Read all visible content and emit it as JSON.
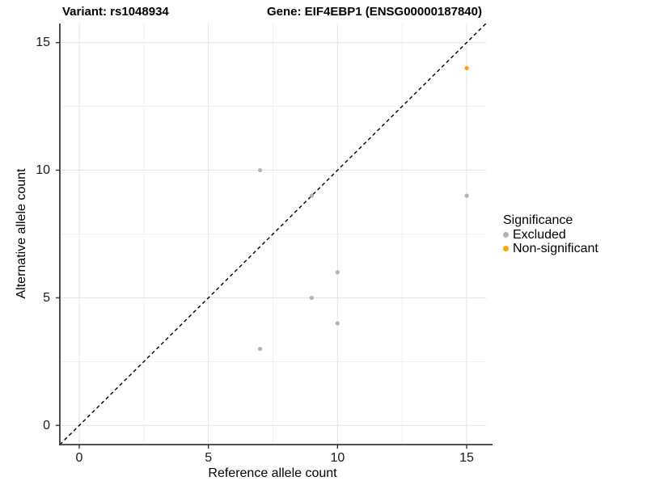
{
  "figure": {
    "title_left": "Variant: rs1048934",
    "title_right": "Gene: EIF4EBP1 (ENSG00000187840)"
  },
  "axes": {
    "x": {
      "label": "Reference allele count",
      "tick_labels": [
        "0",
        "5",
        "10",
        "15"
      ],
      "breaks": [
        0,
        5,
        10,
        15
      ],
      "minor_breaks": [
        2.5,
        7.5,
        12.5
      ],
      "range": [
        -0.75,
        15.75
      ]
    },
    "y": {
      "label": "Alternative allele count",
      "tick_labels": [
        "0",
        "5",
        "10",
        "15"
      ],
      "breaks": [
        0,
        5,
        10,
        15
      ],
      "minor_breaks": [
        2.5,
        7.5,
        12.5
      ],
      "range": [
        -0.75,
        15.75
      ]
    }
  },
  "legend": {
    "title": "Significance",
    "items": [
      {
        "label": "Excluded",
        "color": "#B3B3B3"
      },
      {
        "label": "Non-significant",
        "color": "#FFA500"
      }
    ]
  },
  "chart_data": {
    "type": "scatter",
    "title": "Variant: rs1048934 | Gene: EIF4EBP1 (ENSG00000187840)",
    "xlabel": "Reference allele count",
    "ylabel": "Alternative allele count",
    "xlim": [
      -0.75,
      15.75
    ],
    "ylim": [
      -0.75,
      15.75
    ],
    "x_ticks": [
      0,
      5,
      10,
      15
    ],
    "y_ticks": [
      0,
      5,
      10,
      15
    ],
    "grid": true,
    "legend_position": "right",
    "series": [
      {
        "name": "Excluded",
        "color": "#B3B3B3",
        "points": [
          [
            7,
            10
          ],
          [
            9,
            9
          ],
          [
            15,
            9
          ],
          [
            10,
            6
          ],
          [
            9,
            5
          ],
          [
            10,
            4
          ],
          [
            7,
            3
          ]
        ]
      },
      {
        "name": "Non-significant",
        "color": "#FFA500",
        "points": [
          [
            15,
            14
          ]
        ]
      }
    ],
    "reference_line": {
      "style": "dashed",
      "color": "#000000",
      "equation": "y = x"
    }
  },
  "style": {
    "grid_major": "#E4E4E4",
    "grid_minor": "#F1F1F1",
    "axis_line": "#3a3a3a",
    "tick_mark": "#333333",
    "point_radius": 2.6
  }
}
